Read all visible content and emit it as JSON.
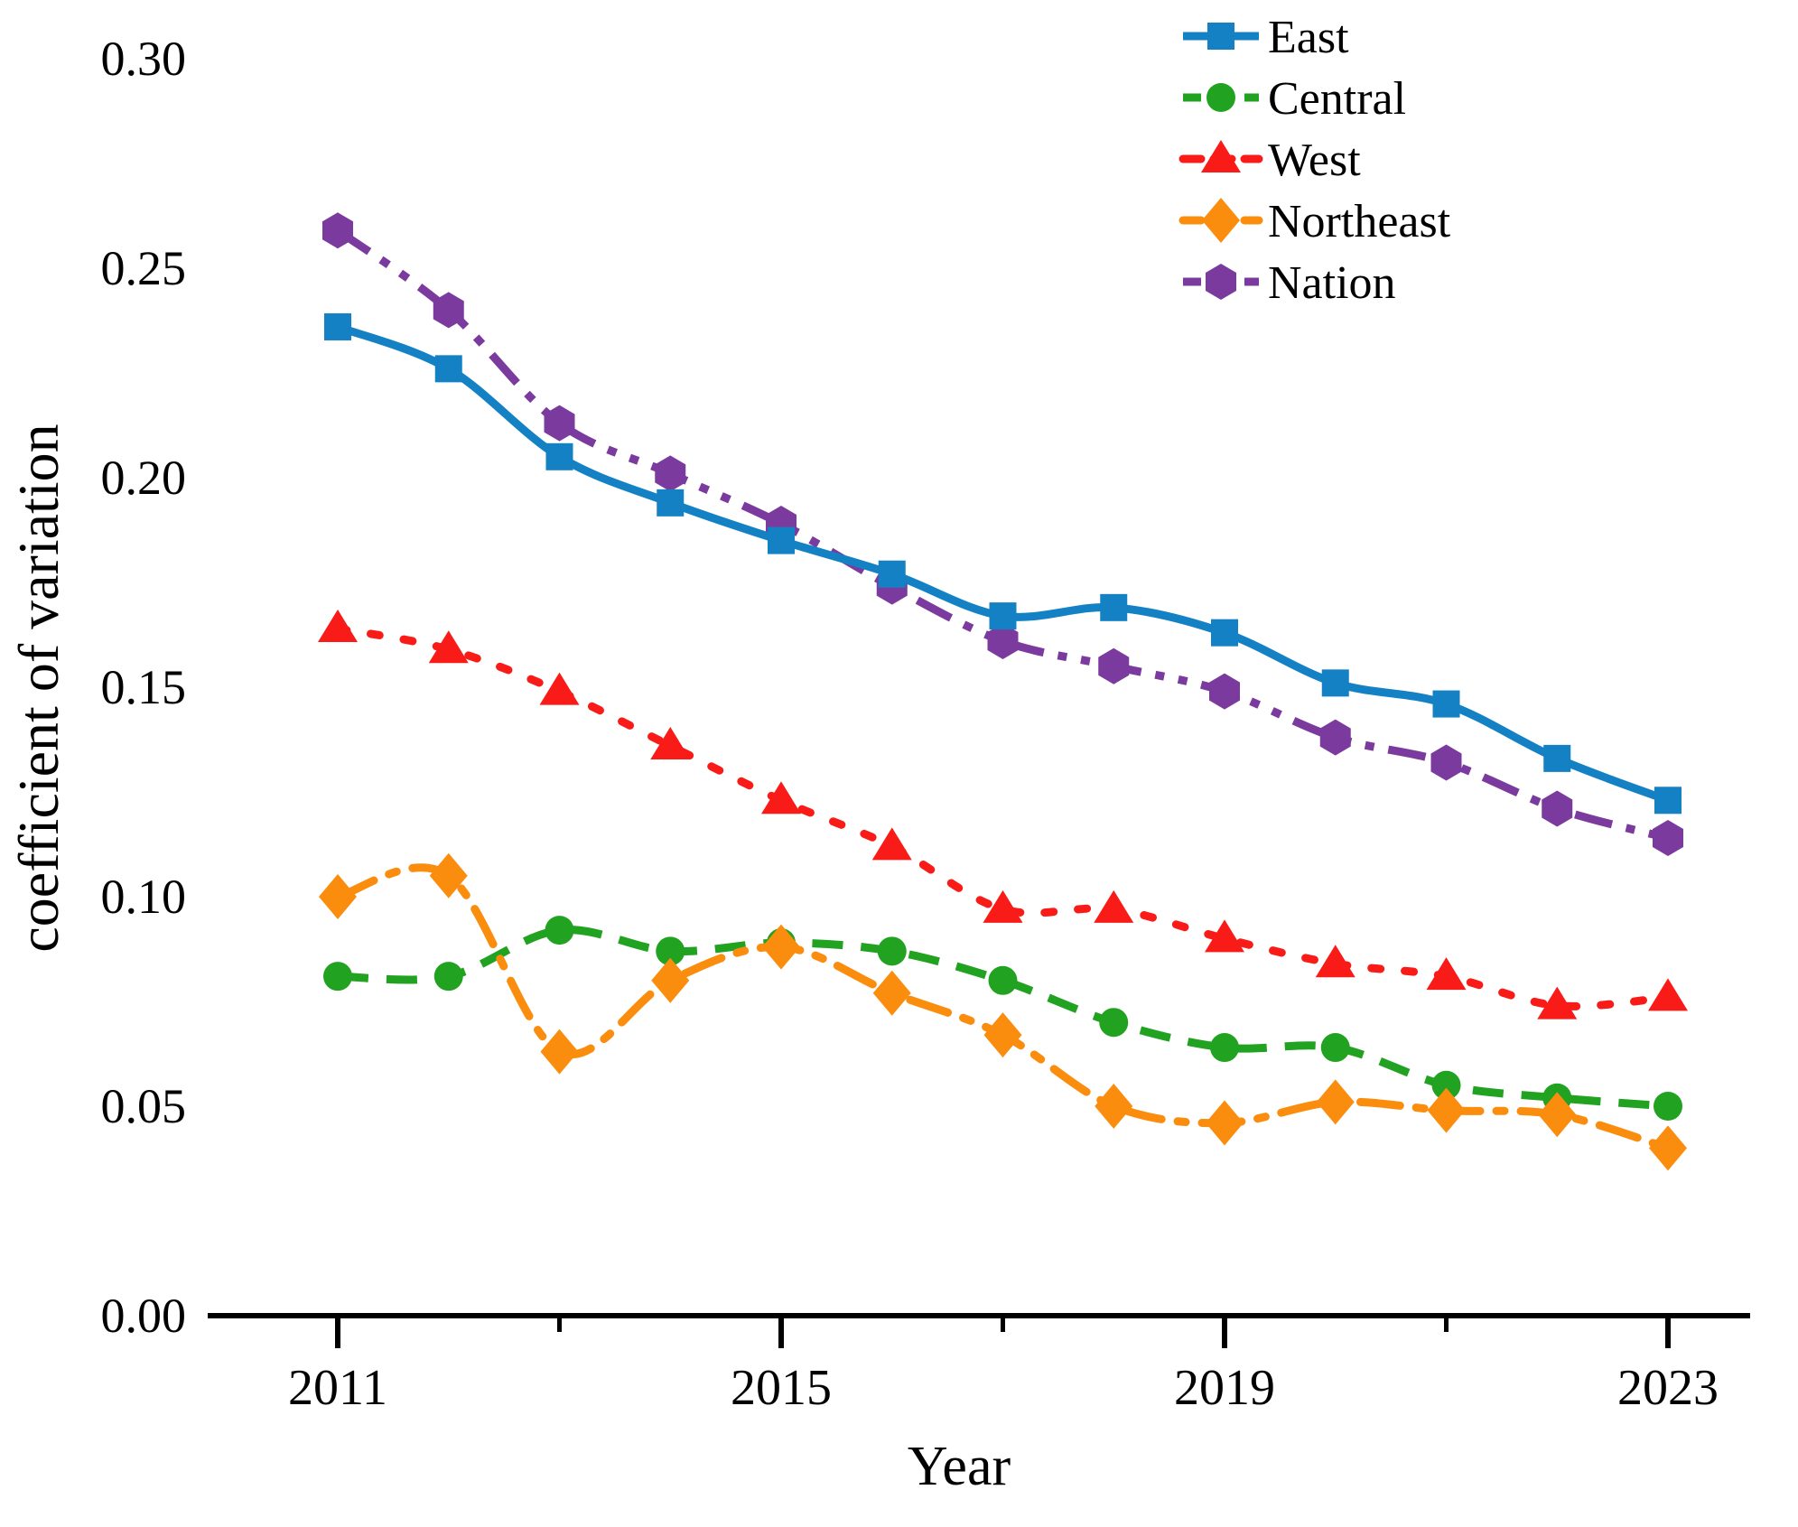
{
  "chart_data": {
    "type": "line",
    "title": "",
    "xlabel": "Year",
    "ylabel": "coefficient of variation",
    "x": [
      2011,
      2012,
      2013,
      2014,
      2015,
      2016,
      2017,
      2018,
      2019,
      2020,
      2021,
      2022,
      2023
    ],
    "x_major_ticks": [
      {
        "label": "2011",
        "value": 2011
      },
      {
        "label": "2015",
        "value": 2015
      },
      {
        "label": "2019",
        "value": 2019
      },
      {
        "label": "2023",
        "value": 2023
      }
    ],
    "x_minor_ticks": [
      2013,
      2017,
      2021
    ],
    "y_ticks": [
      {
        "label": "0.00",
        "value": 0.0
      },
      {
        "label": "0.05",
        "value": 0.05
      },
      {
        "label": "0.10",
        "value": 0.1
      },
      {
        "label": "0.15",
        "value": 0.15
      },
      {
        "label": "0.20",
        "value": 0.2
      },
      {
        "label": "0.25",
        "value": 0.25
      },
      {
        "label": "0.30",
        "value": 0.3
      }
    ],
    "ylim": [
      0.0,
      0.3
    ],
    "grid": false,
    "legend_position": "top-right",
    "background_color": "#ffffff",
    "axis_color": "#000000",
    "series": [
      {
        "name": "East",
        "color": "#1581c5",
        "marker": "square",
        "line_style": "solid",
        "values": [
          0.236,
          0.226,
          0.205,
          0.194,
          0.185,
          0.177,
          0.167,
          0.169,
          0.163,
          0.151,
          0.146,
          0.133,
          0.123
        ]
      },
      {
        "name": "Central",
        "color": "#21a221",
        "marker": "circle",
        "line_style": "dashed",
        "values": [
          0.081,
          0.081,
          0.092,
          0.087,
          0.089,
          0.087,
          0.08,
          0.07,
          0.064,
          0.064,
          0.055,
          0.052,
          0.05
        ]
      },
      {
        "name": "West",
        "color": "#f81b18",
        "marker": "triangle",
        "line_style": "dotted",
        "values": [
          0.164,
          0.159,
          0.149,
          0.136,
          0.123,
          0.112,
          0.097,
          0.097,
          0.09,
          0.084,
          0.081,
          0.074,
          0.076
        ]
      },
      {
        "name": "Northeast",
        "color": "#fb8d0e",
        "marker": "diamond",
        "line_style": "dash-dot",
        "values": [
          0.1,
          0.105,
          0.063,
          0.08,
          0.088,
          0.077,
          0.067,
          0.05,
          0.046,
          0.051,
          0.049,
          0.048,
          0.04
        ]
      },
      {
        "name": "Nation",
        "color": "#7b3a9e",
        "marker": "hexagon",
        "line_style": "dash-dot-dot",
        "values": [
          0.259,
          0.24,
          0.213,
          0.201,
          0.189,
          0.174,
          0.161,
          0.155,
          0.149,
          0.138,
          0.132,
          0.121,
          0.114
        ]
      }
    ]
  }
}
